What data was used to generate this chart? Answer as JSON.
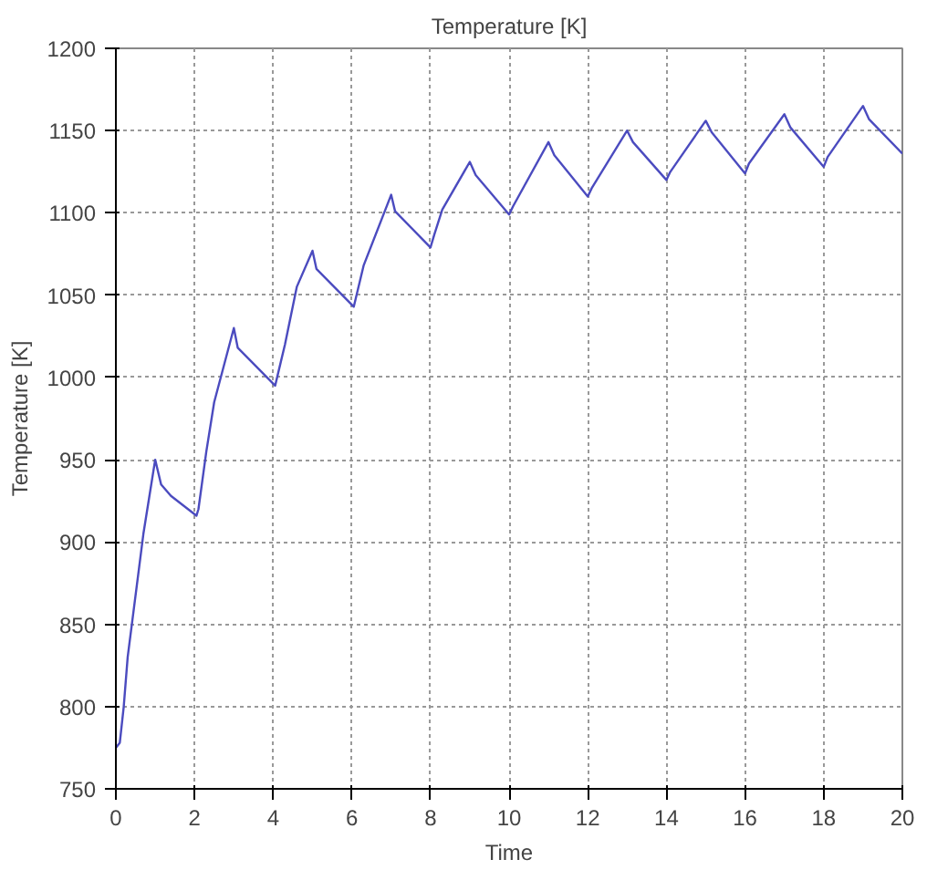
{
  "chart_data": {
    "type": "line",
    "title": "Temperature [K]",
    "xlabel": "Time",
    "ylabel": "Temperature [K]",
    "xlim": [
      0,
      20
    ],
    "ylim": [
      750,
      1200
    ],
    "xticks": [
      0,
      2,
      4,
      6,
      8,
      10,
      12,
      14,
      16,
      18,
      20
    ],
    "yticks": [
      750,
      800,
      850,
      900,
      950,
      1000,
      1050,
      1100,
      1150,
      1200
    ],
    "grid": true,
    "series": [
      {
        "color": "#4b4bbf",
        "x": [
          0,
          0.1,
          0.2,
          0.3,
          0.7,
          1.0,
          1.15,
          1.4,
          2.05,
          2.1,
          2.3,
          2.5,
          3.0,
          3.1,
          4.05,
          4.1,
          4.3,
          4.6,
          5.0,
          5.1,
          6.05,
          6.1,
          6.3,
          7.0,
          7.1,
          8.0,
          8.1,
          8.3,
          9.0,
          9.15,
          10.0,
          10.1,
          11.0,
          11.15,
          12.0,
          12.1,
          13.0,
          13.15,
          14.0,
          14.1,
          15.0,
          15.15,
          16.0,
          16.1,
          17.0,
          17.15,
          18.0,
          18.1,
          19.0,
          19.15,
          20.0
        ],
        "values": [
          775,
          778,
          800,
          830,
          905,
          950,
          935,
          928,
          916,
          920,
          955,
          985,
          1030,
          1018,
          995,
          1000,
          1020,
          1055,
          1077,
          1066,
          1043,
          1048,
          1068,
          1111,
          1101,
          1079,
          1087,
          1102,
          1131,
          1123,
          1099,
          1104,
          1143,
          1135,
          1110,
          1115,
          1150,
          1143,
          1120,
          1125,
          1156,
          1149,
          1124,
          1130,
          1160,
          1152,
          1128,
          1134,
          1165,
          1157,
          1136
        ]
      }
    ]
  }
}
